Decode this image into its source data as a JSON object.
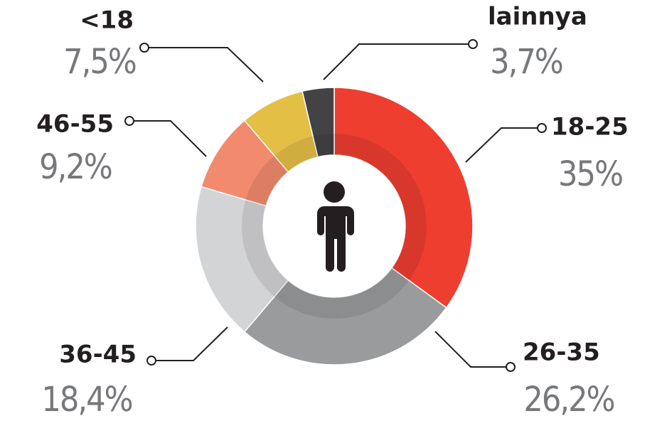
{
  "chart_data": {
    "type": "donut",
    "categories": [
      "18-25",
      "26-35",
      "36-45",
      "46-55",
      "<18",
      "lainnya"
    ],
    "values": [
      35,
      26.2,
      18.4,
      9.2,
      7.5,
      3.7
    ],
    "value_labels": [
      "35%",
      "26,2%",
      "18,4%",
      "9,2%",
      "7,5%",
      "3,7%"
    ],
    "colors": [
      "#ee3e30",
      "#9a9b9d",
      "#d3d4d6",
      "#f28b6e",
      "#e4bf45",
      "#434345"
    ]
  }
}
